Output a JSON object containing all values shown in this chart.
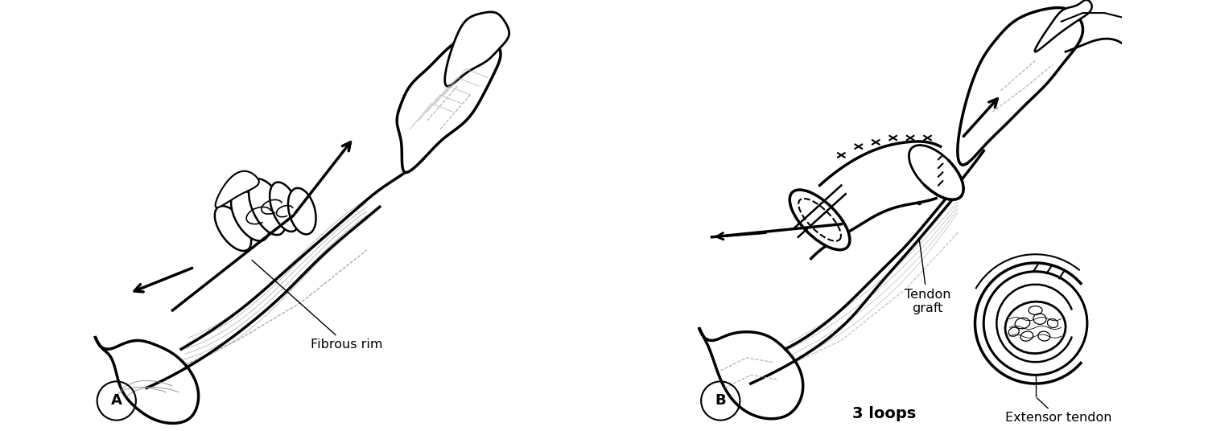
{
  "panel_A_label": "A",
  "panel_B_label": "B",
  "panel_B_sublabel": "3 loops",
  "label_fibrous_rim": "Fibrous rim",
  "label_tendon_graft": "Tendon\ngraft",
  "label_extensor_tendon": "Extensor tendon",
  "bg_color": "#ffffff",
  "fig_width": 15.01,
  "fig_height": 5.36,
  "dpi": 100,
  "circle_label_fontsize": 13,
  "sublabel_fontsize": 14,
  "annotation_fontsize": 11.5
}
